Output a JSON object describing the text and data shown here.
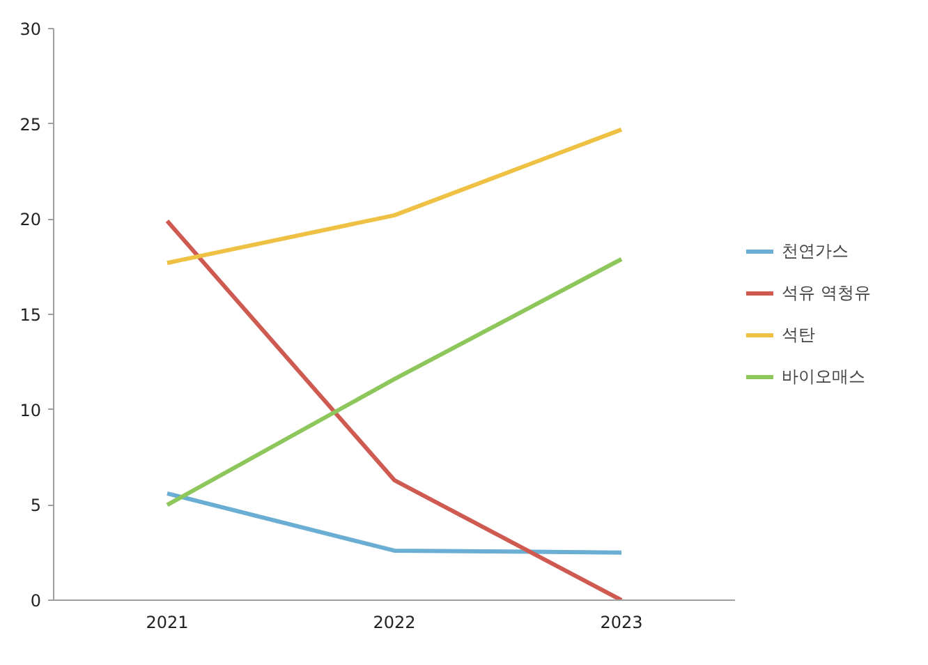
{
  "chart_data": {
    "type": "line",
    "categories": [
      "2021",
      "2022",
      "2023"
    ],
    "series": [
      {
        "name": "천연가스",
        "color": "#6aaed4",
        "values": [
          5.6,
          2.6,
          2.5
        ]
      },
      {
        "name": "석유 역청유",
        "color": "#cf5a52",
        "values": [
          19.9,
          6.3,
          0
        ]
      },
      {
        "name": "석탄",
        "color": "#eec044",
        "values": [
          17.7,
          20.2,
          24.7
        ]
      },
      {
        "name": "바이오매스",
        "color": "#8dc65a",
        "values": [
          5.0,
          11.6,
          17.9
        ]
      }
    ],
    "ylim": [
      0,
      30
    ],
    "yticks": [
      0,
      5,
      10,
      15,
      20,
      25,
      30
    ],
    "grid": false,
    "legend": "right",
    "marker": "none",
    "line_style": "solid"
  }
}
